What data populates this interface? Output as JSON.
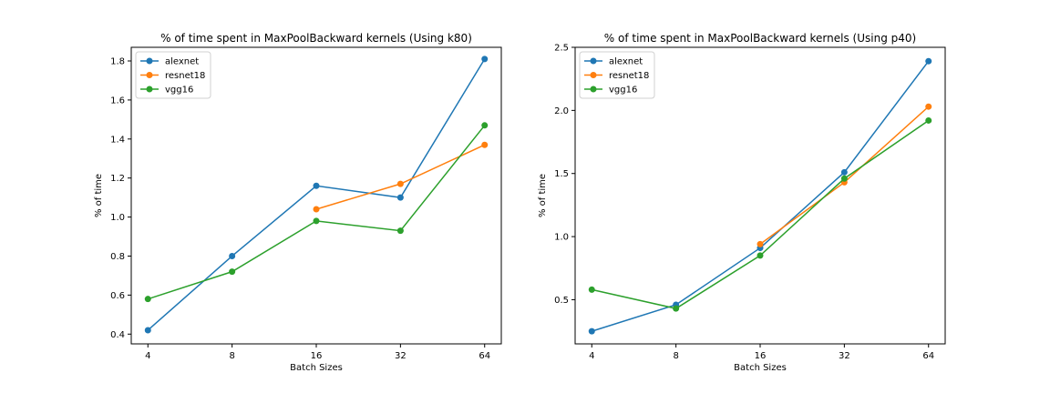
{
  "chart_data": [
    {
      "type": "line",
      "title": "% of time spent in MaxPoolBackward kernels (Using k80)",
      "xlabel": "Batch Sizes",
      "ylabel": "% of time",
      "x_categories": [
        "4",
        "8",
        "16",
        "32",
        "64"
      ],
      "ylim": [
        0.35,
        1.87
      ],
      "yticks": [
        0.4,
        0.6,
        0.8,
        1.0,
        1.2,
        1.4,
        1.6,
        1.8
      ],
      "ytick_labels": [
        "0.4",
        "0.6",
        "0.8",
        "1.0",
        "1.2",
        "1.4",
        "1.6",
        "1.8"
      ],
      "grid": false,
      "legend": "top-left",
      "series": [
        {
          "name": "alexnet",
          "color": "#1f77b4",
          "x": [
            0,
            1,
            2,
            3,
            4
          ],
          "values": [
            0.42,
            0.8,
            1.16,
            1.1,
            1.81
          ]
        },
        {
          "name": "resnet18",
          "color": "#ff7f0e",
          "x": [
            2,
            3,
            4
          ],
          "values": [
            1.04,
            1.17,
            1.37
          ]
        },
        {
          "name": "vgg16",
          "color": "#2ca02c",
          "x": [
            0,
            1,
            2,
            3,
            4
          ],
          "values": [
            0.58,
            0.72,
            0.98,
            0.93,
            1.47
          ]
        }
      ]
    },
    {
      "type": "line",
      "title": "% of time spent in MaxPoolBackward kernels (Using p40)",
      "xlabel": "Batch Sizes",
      "ylabel": "% of time",
      "x_categories": [
        "4",
        "8",
        "16",
        "32",
        "64"
      ],
      "ylim": [
        0.15,
        2.5
      ],
      "yticks": [
        0.5,
        1.0,
        1.5,
        2.0,
        2.5
      ],
      "ytick_labels": [
        "0.5",
        "1.0",
        "1.5",
        "2.0",
        "2.5"
      ],
      "grid": false,
      "legend": "top-left",
      "series": [
        {
          "name": "alexnet",
          "color": "#1f77b4",
          "x": [
            0,
            1,
            2,
            3,
            4
          ],
          "values": [
            0.25,
            0.46,
            0.91,
            1.51,
            2.39
          ]
        },
        {
          "name": "resnet18",
          "color": "#ff7f0e",
          "x": [
            2,
            3,
            4
          ],
          "values": [
            0.94,
            1.43,
            2.03
          ]
        },
        {
          "name": "vgg16",
          "color": "#2ca02c",
          "x": [
            0,
            1,
            2,
            3,
            4
          ],
          "values": [
            0.58,
            0.43,
            0.85,
            1.46,
            1.92
          ]
        }
      ]
    }
  ]
}
